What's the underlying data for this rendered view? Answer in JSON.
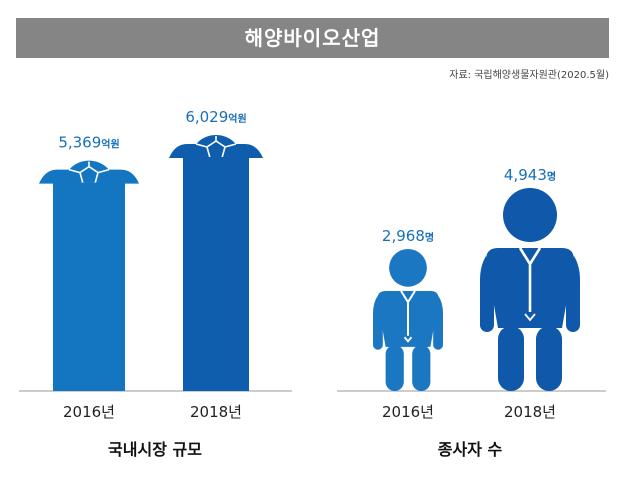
{
  "title": "해양바이오산업",
  "source": "자료: 국립해양생물자원관(2020.5월)",
  "colors": {
    "title_bg": "#858585",
    "bar_2016": "#1476c0",
    "bar_2018": "#0f5ead",
    "value_text": "#1a70b8",
    "person_light": "#1b77c2",
    "person_dark": "#0f58aa"
  },
  "chart_data": [
    {
      "type": "bar",
      "title": "국내시장 규모",
      "categories": [
        "2016년",
        "2018년"
      ],
      "values": [
        5369,
        6029
      ],
      "unit": "억원",
      "value_labels": [
        "5,369",
        "6,029"
      ],
      "decoration": "turtle-on-bar"
    },
    {
      "type": "bar",
      "title": "종사자 수",
      "categories": [
        "2016년",
        "2018년"
      ],
      "values": [
        2968,
        4943
      ],
      "unit": "명",
      "value_labels": [
        "2,968",
        "4,943"
      ],
      "decoration": "person-pictogram"
    }
  ]
}
